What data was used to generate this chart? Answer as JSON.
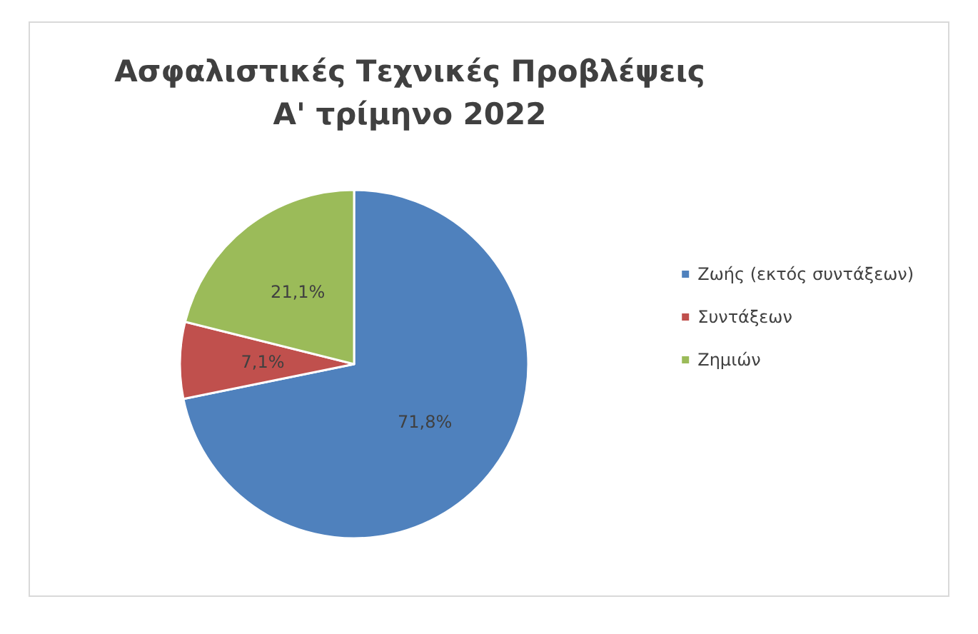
{
  "chart_data": {
    "type": "pie",
    "title": "Ασφαλιστικές Τεχνικές Προβλέψεις\nΑ' τρίμηνο 2022",
    "categories": [
      "Ζωής (εκτός συντάξεων)",
      "Συντάξεων",
      "Ζημιών"
    ],
    "values": [
      71.8,
      7.1,
      21.1
    ],
    "colors": [
      "#4f81bd",
      "#c0504d",
      "#9bbb59"
    ],
    "value_labels": [
      "71,8%",
      "7,1%",
      "21,1%"
    ],
    "legend": "right"
  }
}
